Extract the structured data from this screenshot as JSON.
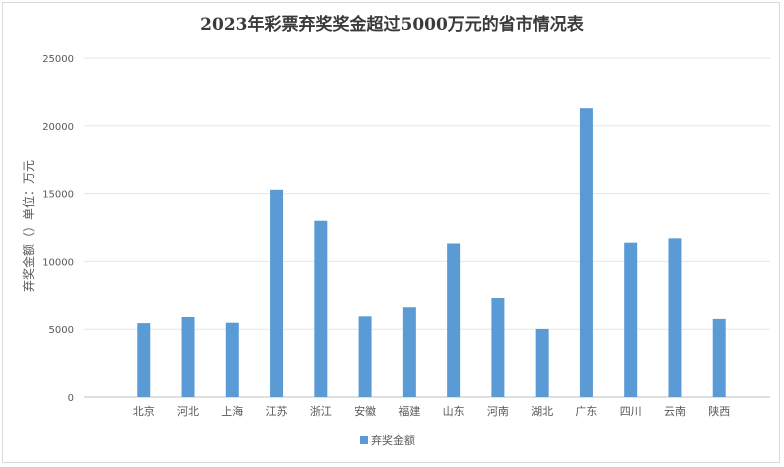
{
  "chart_data": {
    "type": "bar",
    "title": "2023年彩票弃奖奖金超过5000万元的省市情况表",
    "ylabel": "弃奖金额（）单位：万元",
    "xlabel": "",
    "ylim": [
      0,
      25000
    ],
    "yticks": [
      "0",
      "5000",
      "10000",
      "15000",
      "20000",
      "25000"
    ],
    "categories": [
      "北京",
      "河北",
      "上海",
      "江苏",
      "浙江",
      "安徽",
      "福建",
      "山东",
      "河南",
      "湖北",
      "广东",
      "四川",
      "云南",
      "陕西"
    ],
    "series": [
      {
        "name": "弃奖金额",
        "color": "#5b9bd5",
        "values": [
          5450,
          5900,
          5480,
          15280,
          13000,
          5950,
          6620,
          11320,
          7300,
          5020,
          21300,
          11380,
          11700,
          5760
        ]
      }
    ],
    "grid": true,
    "legend": "bottom"
  }
}
